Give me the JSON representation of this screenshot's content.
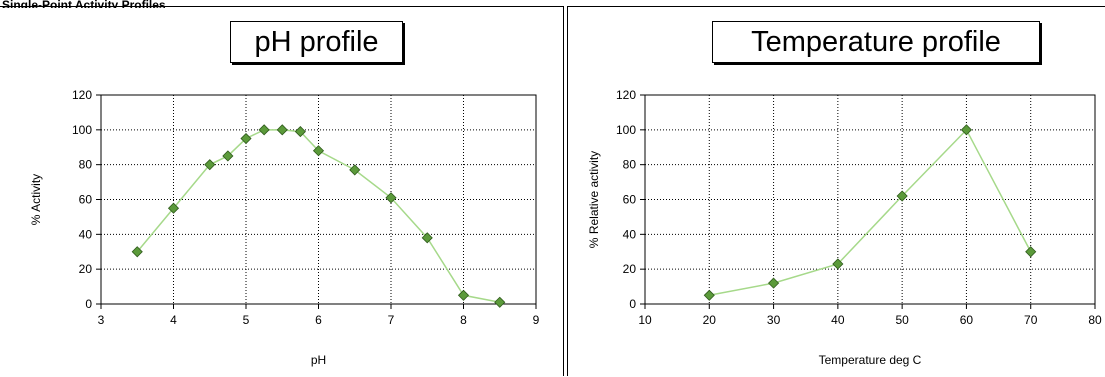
{
  "header": {
    "text": "Single-Point Activity Profiles"
  },
  "colors": {
    "marker": "#5b9a3a",
    "line": "#a6d98a",
    "grid": "#000000"
  },
  "chart_data": [
    {
      "type": "line",
      "title": "pH profile",
      "xlabel": "pH",
      "ylabel": "% Activity",
      "xlim": [
        3,
        9
      ],
      "ylim": [
        0,
        120
      ],
      "xticks": [
        3,
        4,
        5,
        6,
        7,
        8,
        9
      ],
      "yticks": [
        0,
        20,
        40,
        60,
        80,
        100,
        120
      ],
      "grid": true,
      "x": [
        3.5,
        4,
        4.5,
        4.75,
        5,
        5.25,
        5.5,
        5.75,
        6,
        6.5,
        7,
        7.5,
        8,
        8.5
      ],
      "y": [
        30,
        55,
        80,
        85,
        95,
        100,
        100,
        99,
        88,
        77,
        61,
        38,
        5,
        1
      ]
    },
    {
      "type": "line",
      "title": "Temperature profile",
      "xlabel": "Temperature deg C",
      "ylabel": "% Relative activity",
      "xlim": [
        10,
        80
      ],
      "ylim": [
        0,
        120
      ],
      "xticks": [
        10,
        20,
        30,
        40,
        50,
        60,
        70,
        80
      ],
      "yticks": [
        0,
        20,
        40,
        60,
        80,
        100,
        120
      ],
      "grid": true,
      "x": [
        20,
        30,
        40,
        50,
        60,
        70
      ],
      "y": [
        5,
        12,
        23,
        62,
        100,
        30
      ]
    }
  ]
}
